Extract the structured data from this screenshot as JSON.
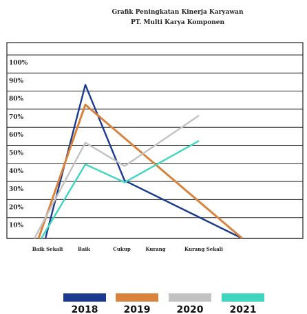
{
  "chart_data": {
    "type": "line",
    "title": "Grafik Peningkatan Kinerja Karyawan",
    "subtitle": "PT. Multi Karya Komponen",
    "categories": [
      "Baik Sekali",
      "Baik",
      "Cukup",
      "Kurang",
      "Kurang Sekali"
    ],
    "yticks": [
      "10%",
      "20%",
      "30%",
      "40%",
      "50%",
      "60%",
      "70%",
      "80%",
      "90%",
      "100%"
    ],
    "ylim": [
      0,
      105
    ],
    "grid": true,
    "legend_position": "bottom",
    "series": [
      {
        "name": "2018",
        "color": "#1a3a8f",
        "values": [
          0,
          85,
          32,
          null,
          0
        ]
      },
      {
        "name": "2019",
        "color": "#d9823b",
        "values": [
          0,
          74,
          null,
          null,
          0
        ]
      },
      {
        "name": "2020",
        "color": "#c2c2c2",
        "values": [
          0,
          53,
          40,
          null,
          68
        ]
      },
      {
        "name": "2021",
        "color": "#3fd6c0",
        "values": [
          0,
          41,
          31,
          null,
          54
        ]
      }
    ]
  }
}
